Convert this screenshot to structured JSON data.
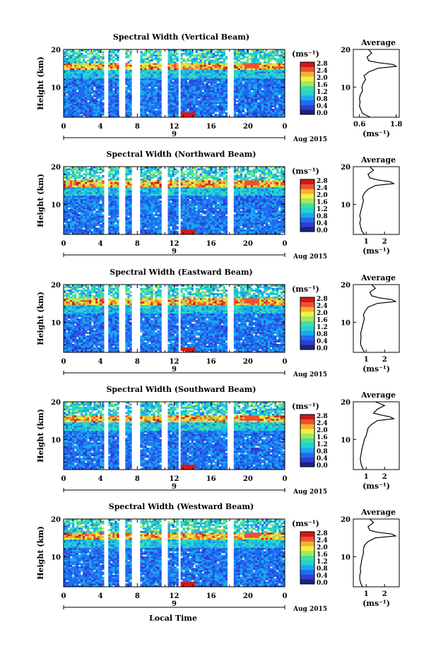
{
  "figure": {
    "xlabel": "Local Time",
    "ylabel": "Height (km)",
    "date_label": "Aug 2015",
    "day_label": "9",
    "x_ticks": [
      "0",
      "4",
      "8",
      "12",
      "16",
      "20",
      "0"
    ],
    "y_ticks": [
      "10",
      "20"
    ],
    "colorbar_unit": "(ms⁻¹)",
    "colorbar_ticks": [
      "0.0",
      "0.4",
      "0.8",
      "1.2",
      "1.6",
      "2.0",
      "2.4",
      "2.8"
    ],
    "average_title": "Average",
    "average_xlabel": "(ms⁻¹)",
    "colors": [
      "#1a237e",
      "#2e3dd6",
      "#1f6cf0",
      "#1aa8f0",
      "#20d4d0",
      "#40e0a0",
      "#a0e860",
      "#f0f040",
      "#f8b030",
      "#f05030",
      "#d01818"
    ]
  },
  "chart_data": [
    {
      "type": "heatmap",
      "title": "Spectral Width (Vertical Beam)",
      "x_range_hours": [
        0,
        24
      ],
      "y_range_km": [
        2,
        20
      ],
      "colorbar_range": [
        0.0,
        2.8
      ],
      "gaps_hours": [
        [
          4.3,
          4.9
        ],
        [
          6.1,
          6.6
        ],
        [
          7.4,
          8.2
        ],
        [
          10.6,
          11.3
        ],
        [
          12.5,
          12.8
        ],
        [
          17.7,
          18.4
        ]
      ],
      "average_profile": {
        "xticks": [
          "0.6",
          "1.8"
        ],
        "xlim": [
          0.4,
          1.9
        ],
        "heights_km": [
          2,
          3,
          4,
          5,
          6,
          7,
          8,
          9,
          10,
          11,
          12,
          13,
          14,
          15,
          15.5,
          16,
          16.5,
          17,
          18,
          19,
          20
        ],
        "values": [
          0.95,
          0.7,
          0.65,
          0.6,
          0.62,
          0.6,
          0.63,
          0.7,
          0.68,
          0.72,
          0.8,
          0.75,
          0.9,
          1.2,
          1.8,
          1.7,
          1.2,
          0.9,
          0.85,
          1.0,
          0.9
        ]
      }
    },
    {
      "type": "heatmap",
      "title": "Spectral Width (Northward Beam)",
      "x_range_hours": [
        0,
        24
      ],
      "y_range_km": [
        2,
        20
      ],
      "colorbar_range": [
        0.0,
        2.8
      ],
      "gaps_hours": [
        [
          4.3,
          4.9
        ],
        [
          6.1,
          6.6
        ],
        [
          7.4,
          8.2
        ],
        [
          10.6,
          11.3
        ],
        [
          12.5,
          12.8
        ],
        [
          17.7,
          18.4
        ]
      ],
      "average_profile": {
        "xticks": [
          "1",
          "2"
        ],
        "xlim": [
          0.3,
          2.8
        ],
        "heights_km": [
          2,
          3,
          4,
          5,
          6,
          7,
          8,
          9,
          10,
          11,
          12,
          13,
          14,
          15,
          15.5,
          16,
          16.5,
          17,
          18,
          19,
          20
        ],
        "values": [
          0.9,
          0.75,
          0.7,
          0.65,
          0.7,
          0.65,
          0.7,
          0.75,
          0.8,
          0.85,
          0.8,
          0.9,
          1.1,
          1.5,
          2.5,
          2.3,
          1.6,
          1.2,
          1.1,
          1.4,
          1.2
        ]
      }
    },
    {
      "type": "heatmap",
      "title": "Spectral Width (Eastward Beam)",
      "x_range_hours": [
        0,
        24
      ],
      "y_range_km": [
        2,
        20
      ],
      "colorbar_range": [
        0.0,
        2.8
      ],
      "gaps_hours": [
        [
          4.3,
          4.9
        ],
        [
          6.1,
          6.6
        ],
        [
          7.4,
          8.2
        ],
        [
          10.6,
          11.3
        ],
        [
          12.5,
          12.8
        ],
        [
          17.7,
          18.4
        ]
      ],
      "average_profile": {
        "xticks": [
          "1",
          "2"
        ],
        "xlim": [
          0.3,
          2.8
        ],
        "heights_km": [
          2,
          3,
          4,
          5,
          6,
          7,
          8,
          9,
          10,
          11,
          12,
          13,
          14,
          15,
          15.5,
          16,
          16.5,
          17,
          18,
          19,
          20
        ],
        "values": [
          0.9,
          0.8,
          0.7,
          0.7,
          0.72,
          0.7,
          0.75,
          0.8,
          0.85,
          0.9,
          0.85,
          0.95,
          1.1,
          1.6,
          2.6,
          2.4,
          1.7,
          1.3,
          1.2,
          1.5,
          1.3
        ]
      }
    },
    {
      "type": "heatmap",
      "title": "Spectral Width (Southward Beam)",
      "x_range_hours": [
        0,
        24
      ],
      "y_range_km": [
        2,
        20
      ],
      "colorbar_range": [
        0.0,
        2.8
      ],
      "gaps_hours": [
        [
          4.3,
          4.9
        ],
        [
          6.1,
          6.6
        ],
        [
          7.4,
          8.2
        ],
        [
          10.6,
          11.3
        ],
        [
          12.5,
          12.8
        ],
        [
          17.7,
          18.4
        ]
      ],
      "average_profile": {
        "xticks": [
          "1",
          "2"
        ],
        "xlim": [
          0.3,
          2.8
        ],
        "heights_km": [
          2,
          3,
          4,
          5,
          6,
          7,
          8,
          9,
          10,
          11,
          12,
          13,
          14,
          15,
          15.5,
          16,
          16.5,
          17,
          18,
          19,
          20
        ],
        "values": [
          0.85,
          0.75,
          0.7,
          0.68,
          0.72,
          0.75,
          0.8,
          0.85,
          0.9,
          1.0,
          1.05,
          1.1,
          1.3,
          1.6,
          2.5,
          2.3,
          1.8,
          1.4,
          1.6,
          2.0,
          1.5
        ]
      }
    },
    {
      "type": "heatmap",
      "title": "Spectral Width (Westward Beam)",
      "x_range_hours": [
        0,
        24
      ],
      "y_range_km": [
        2,
        20
      ],
      "colorbar_range": [
        0.0,
        2.8
      ],
      "gaps_hours": [
        [
          4.3,
          4.9
        ],
        [
          6.1,
          6.6
        ],
        [
          7.4,
          8.2
        ],
        [
          10.6,
          11.3
        ],
        [
          12.5,
          12.8
        ],
        [
          17.7,
          18.4
        ]
      ],
      "average_profile": {
        "xticks": [
          "1",
          "2"
        ],
        "xlim": [
          0.3,
          2.8
        ],
        "heights_km": [
          2,
          3,
          4,
          5,
          6,
          7,
          8,
          9,
          10,
          11,
          12,
          13,
          14,
          15,
          15.5,
          16,
          16.5,
          17,
          18,
          19,
          20
        ],
        "values": [
          0.8,
          0.7,
          0.65,
          0.65,
          0.7,
          0.68,
          0.72,
          0.75,
          0.8,
          0.85,
          0.85,
          0.9,
          1.1,
          1.5,
          2.6,
          2.4,
          1.6,
          1.2,
          1.1,
          1.4,
          1.2
        ]
      }
    }
  ]
}
